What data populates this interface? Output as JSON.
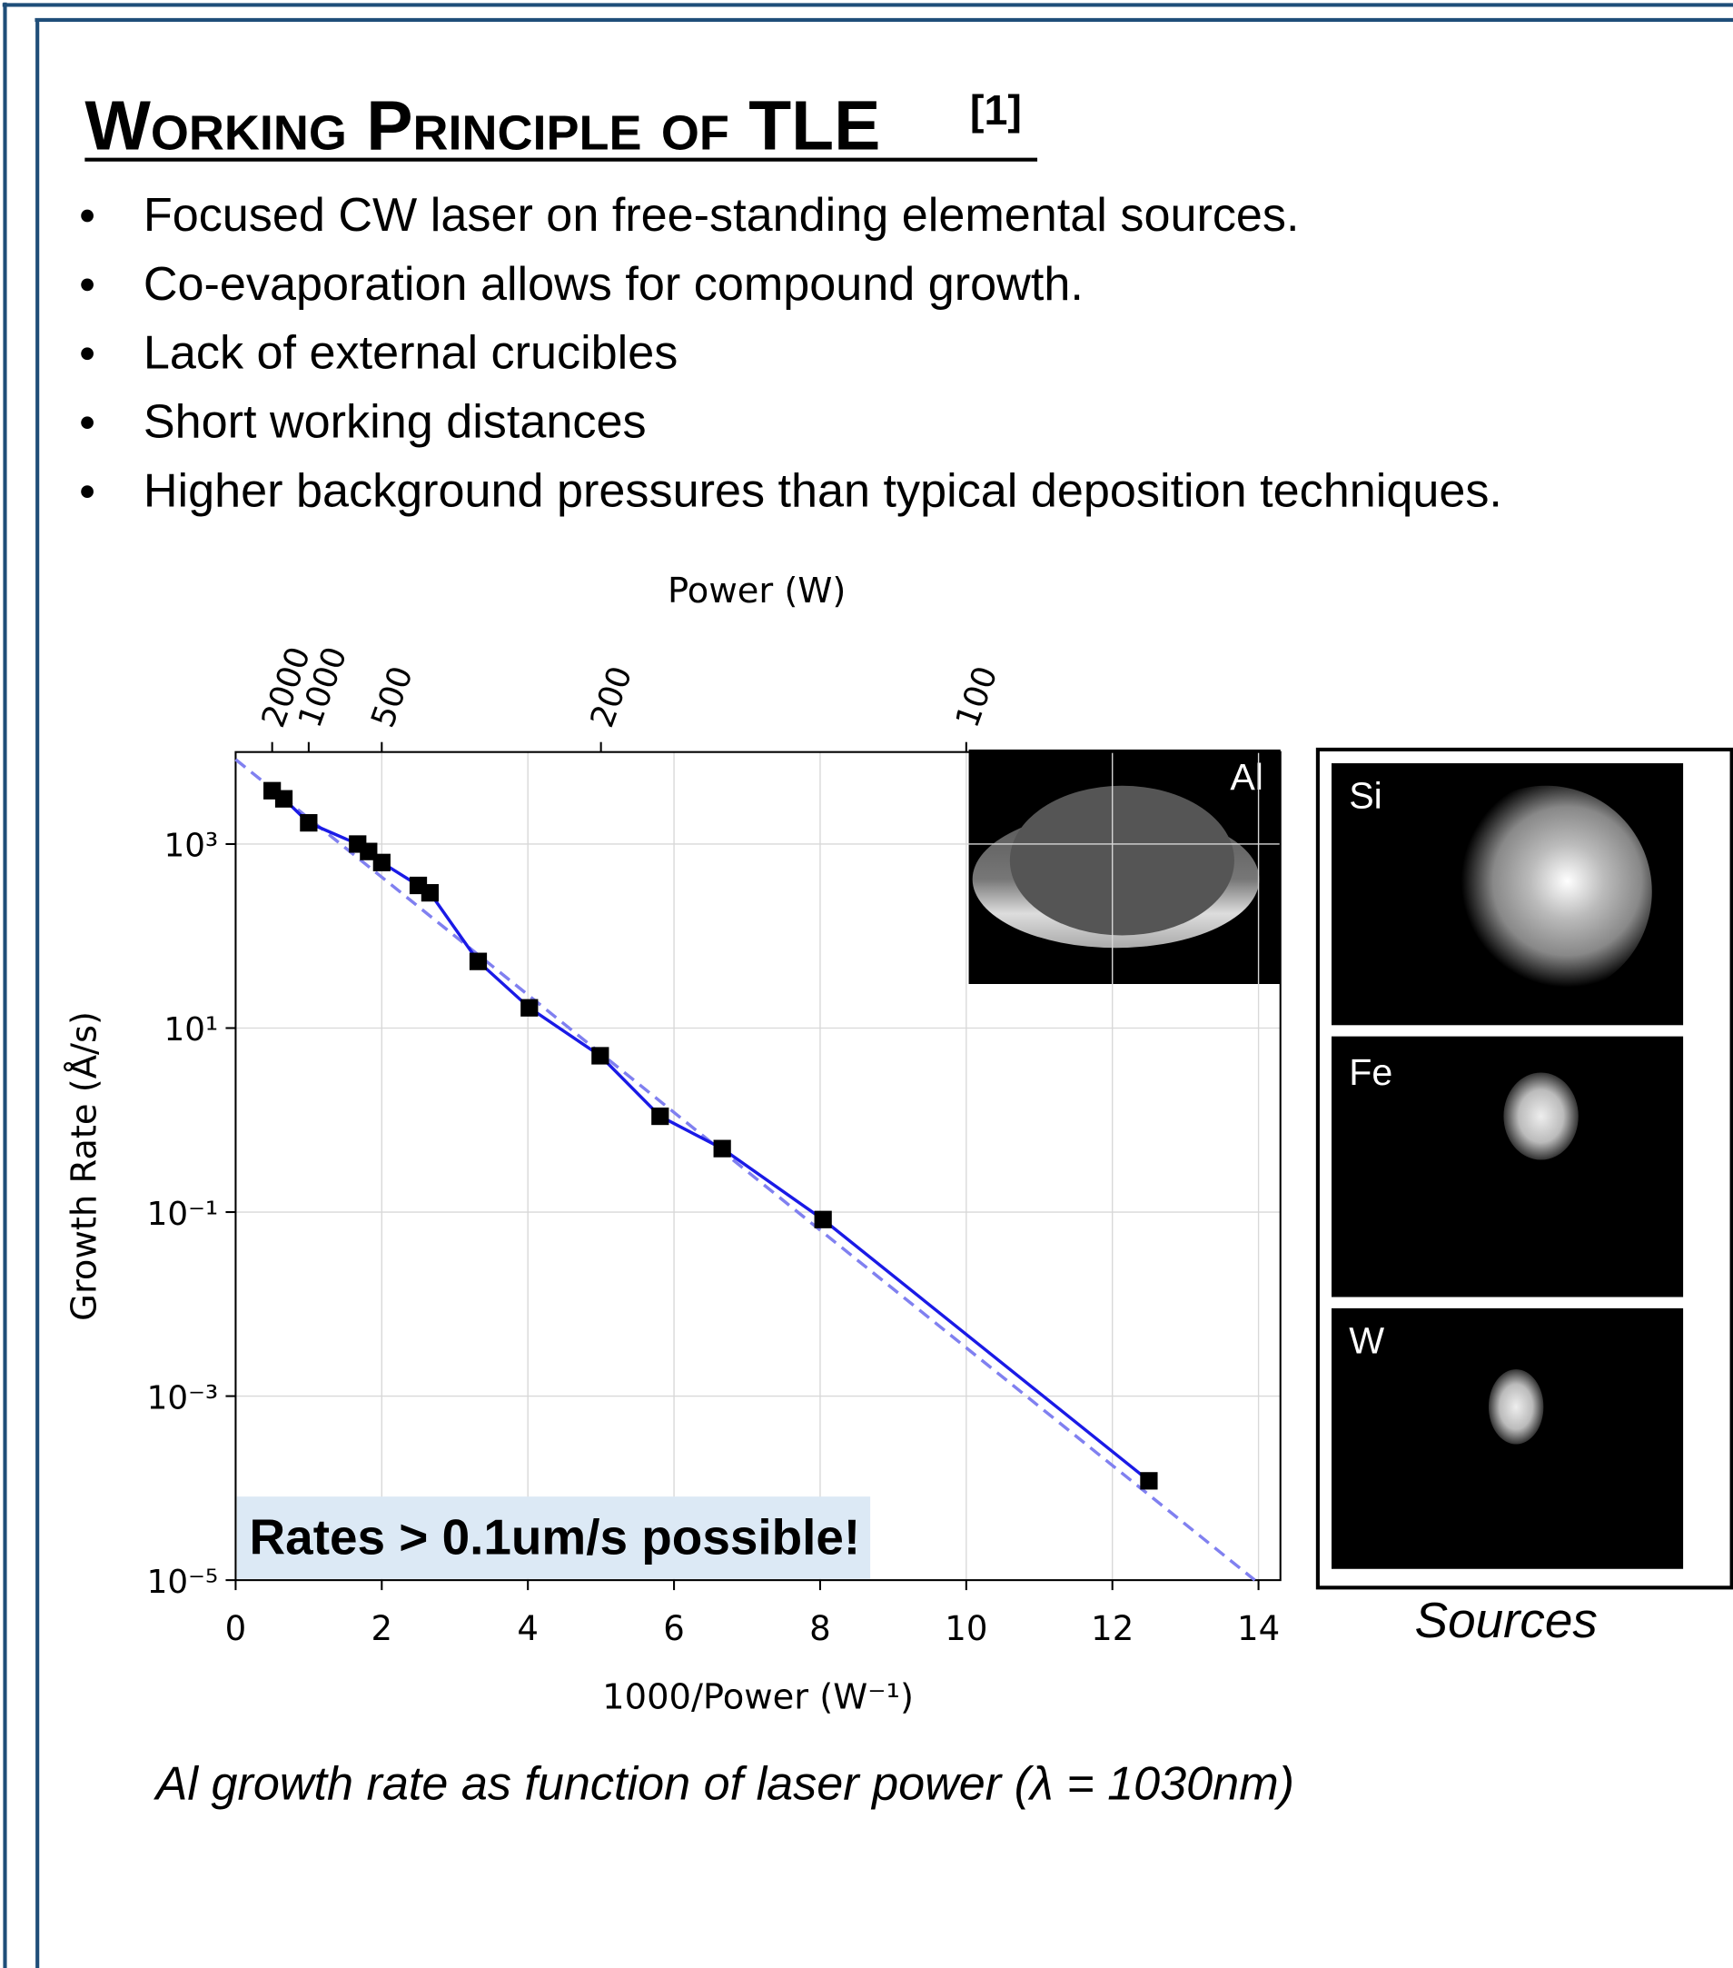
{
  "header": {
    "title": "Working Principle of TLE",
    "reference": "[1]"
  },
  "bullets": [
    "Focused CW laser on free-standing elemental sources.",
    "Co-evaporation allows for compound growth.",
    "Lack of external crucibles",
    "Short working distances",
    "Higher background pressures than typical deposition techniques."
  ],
  "chart_data": {
    "type": "line",
    "xlabel": "1000/Power (W⁻¹)",
    "ylabel": "Growth Rate (Å/s)",
    "x2label": "Power (W)",
    "xlim": [
      0,
      14.3
    ],
    "xticks": [
      0,
      2,
      4,
      6,
      8,
      10,
      12,
      14
    ],
    "ylim": [
      1e-05,
      10000
    ],
    "log_y": true,
    "yticks": [
      {
        "value": 1e-05,
        "label": "10⁻⁵"
      },
      {
        "value": 0.001,
        "label": "10⁻³"
      },
      {
        "value": 0.1,
        "label": "10⁻¹"
      },
      {
        "value": 10,
        "label": "10¹"
      },
      {
        "value": 1000,
        "label": "10³"
      }
    ],
    "x2ticks": [
      2000,
      1000,
      500,
      200,
      100
    ],
    "grid": true,
    "series": [
      {
        "color": "#1a1ae6",
        "marker_color": "#000000",
        "x": [
          0.5,
          0.66,
          1.0,
          1.67,
          1.82,
          2.0,
          2.5,
          2.66,
          3.32,
          4.02,
          4.99,
          5.81,
          6.66,
          8.04,
          12.5
        ],
        "values": [
          3800,
          3100,
          1700,
          1000,
          830,
          630,
          355,
          295,
          53,
          16.6,
          5.0,
          1.1,
          0.49,
          0.083,
          0.00012
        ]
      },
      {
        "color": "#8080f0",
        "linestyle": "dashed",
        "x": [
          0,
          13.95
        ],
        "values": [
          8300,
          1e-05
        ]
      }
    ],
    "annotation": "Rates > 0.1um/s possible!"
  },
  "insets": {
    "main": "Al",
    "sources": [
      "Si",
      "Fe",
      "W"
    ],
    "sources_caption": "Sources"
  },
  "caption": "Al growth rate as function of laser power (λ = 1030nm)"
}
